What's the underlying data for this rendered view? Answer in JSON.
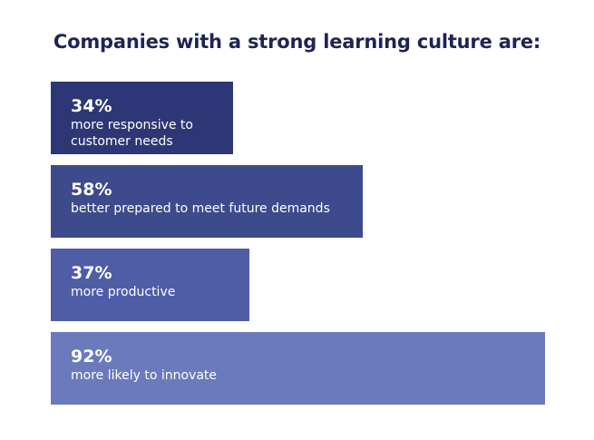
{
  "chart_data": {
    "type": "bar",
    "orientation": "horizontal",
    "title": "Companies with a strong learning culture are:",
    "unit": "%",
    "categories": [
      "more responsive to customer needs",
      "better prepared to meet future demands",
      "more productive",
      "more likely to innovate"
    ],
    "values": [
      34,
      58,
      37,
      92
    ],
    "value_labels": [
      "34%",
      "58%",
      "37%",
      "92%"
    ],
    "xlim": [
      0,
      92
    ],
    "colors": [
      "#2e3775",
      "#3d4a8c",
      "#4f5ca6",
      "#6a7abd"
    ],
    "grid": false,
    "legend": "none"
  }
}
